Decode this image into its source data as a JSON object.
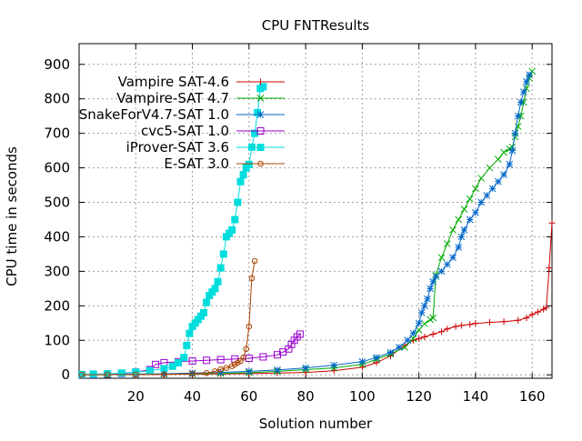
{
  "chart_data": {
    "type": "line",
    "title": "CPU FNTResults",
    "xlabel": "Solution number",
    "ylabel": "CPU time in seconds",
    "xlim": [
      0,
      167
    ],
    "ylim": [
      -10,
      960
    ],
    "xticks": [
      20,
      40,
      60,
      80,
      100,
      120,
      140,
      160
    ],
    "yticks": [
      0,
      100,
      200,
      300,
      400,
      500,
      600,
      700,
      800,
      900
    ],
    "grid": true,
    "legend_position": "top-left",
    "series": [
      {
        "name": "Vampire SAT-4.6",
        "color": "#cc0000",
        "marker": "plus",
        "x": [
          1,
          10,
          20,
          30,
          40,
          50,
          60,
          70,
          80,
          90,
          100,
          105,
          110,
          115,
          118,
          120,
          122,
          125,
          128,
          130,
          133,
          135,
          138,
          140,
          145,
          150,
          155,
          158,
          160,
          162,
          164,
          165,
          166,
          167
        ],
        "y": [
          0.3,
          0.5,
          0.8,
          1.2,
          1.8,
          2.5,
          3.5,
          5,
          7,
          12,
          22,
          35,
          55,
          85,
          100,
          105,
          110,
          118,
          125,
          133,
          140,
          143,
          146,
          149,
          152,
          154,
          158,
          165,
          175,
          182,
          190,
          195,
          310,
          440
        ]
      },
      {
        "name": "Vampire-SAT 4.7",
        "color": "#00aa00",
        "marker": "x",
        "x": [
          1,
          10,
          20,
          30,
          40,
          50,
          60,
          70,
          80,
          90,
          100,
          105,
          110,
          115,
          118,
          120,
          122,
          124,
          125,
          126,
          128,
          130,
          132,
          134,
          136,
          138,
          140,
          142,
          145,
          148,
          150,
          152,
          153,
          154,
          155,
          156,
          157,
          158,
          159,
          160
        ],
        "y": [
          0.3,
          0.5,
          1,
          2,
          3,
          4,
          6,
          10,
          15,
          20,
          30,
          45,
          60,
          80,
          105,
          130,
          148,
          160,
          165,
          290,
          340,
          380,
          420,
          450,
          480,
          510,
          540,
          570,
          600,
          625,
          645,
          655,
          660,
          690,
          720,
          750,
          790,
          830,
          860,
          880
        ]
      },
      {
        "name": "SnakeForV4.7-SAT 1.0",
        "color": "#0066cc",
        "marker": "asterisk",
        "x": [
          1,
          10,
          20,
          30,
          40,
          50,
          60,
          70,
          80,
          90,
          100,
          105,
          110,
          113,
          116,
          118,
          120,
          121,
          122,
          123,
          124,
          125,
          126,
          128,
          130,
          132,
          134,
          135,
          136,
          138,
          140,
          142,
          144,
          146,
          148,
          150,
          152,
          153,
          154,
          155,
          156,
          157,
          158,
          159
        ],
        "y": [
          0.5,
          1,
          2,
          3,
          5,
          7,
          10,
          14,
          20,
          28,
          38,
          50,
          65,
          80,
          100,
          120,
          150,
          180,
          200,
          220,
          250,
          270,
          285,
          300,
          320,
          340,
          370,
          400,
          420,
          450,
          470,
          500,
          520,
          540,
          560,
          580,
          610,
          650,
          700,
          750,
          790,
          820,
          850,
          870
        ]
      },
      {
        "name": "cvc5-SAT 1.0",
        "color": "#9900cc",
        "marker": "square-open",
        "x": [
          1,
          5,
          10,
          15,
          20,
          25,
          27,
          30,
          35,
          40,
          45,
          50,
          55,
          60,
          65,
          70,
          72,
          74,
          75,
          76,
          77,
          78
        ],
        "y": [
          0.5,
          1,
          2,
          4,
          8,
          15,
          30,
          35,
          38,
          40,
          42,
          44,
          46,
          48,
          52,
          58,
          66,
          75,
          88,
          100,
          110,
          118
        ]
      },
      {
        "name": "iProver-SAT 3.6",
        "color": "#00dddd",
        "marker": "square-filled",
        "x": [
          1,
          5,
          10,
          15,
          20,
          25,
          30,
          33,
          35,
          37,
          38,
          39,
          40,
          41,
          42,
          43,
          44,
          45,
          46,
          47,
          48,
          49,
          50,
          51,
          52,
          53,
          54,
          55,
          56,
          57,
          58,
          59,
          60,
          61,
          62,
          63,
          64,
          65
        ],
        "y": [
          1,
          2,
          3,
          5,
          8,
          12,
          18,
          25,
          35,
          50,
          85,
          120,
          140,
          150,
          160,
          170,
          180,
          210,
          230,
          240,
          250,
          270,
          310,
          350,
          400,
          410,
          420,
          450,
          500,
          560,
          580,
          600,
          610,
          660,
          700,
          760,
          830,
          835
        ]
      },
      {
        "name": "E-SAT 3.0",
        "color": "#aa4400",
        "marker": "circle-open",
        "x": [
          1,
          10,
          20,
          30,
          40,
          45,
          48,
          50,
          52,
          54,
          55,
          56,
          57,
          58,
          59,
          60,
          61,
          62
        ],
        "y": [
          0.2,
          0.4,
          0.8,
          1.5,
          3,
          5,
          10,
          16,
          20,
          25,
          30,
          35,
          40,
          50,
          75,
          140,
          280,
          330
        ]
      }
    ]
  }
}
